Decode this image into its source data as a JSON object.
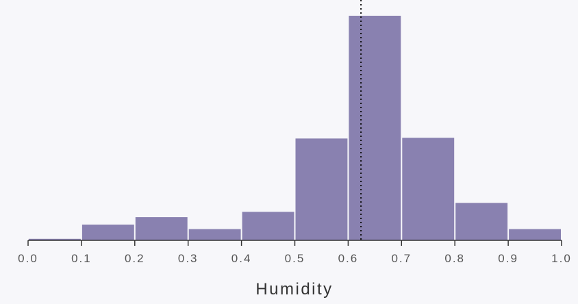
{
  "chart_data": {
    "type": "bar",
    "subtype": "histogram",
    "xlabel": "Humidity",
    "ylabel": "",
    "xlim": [
      0.0,
      1.0
    ],
    "bins": [
      {
        "x0": 0.0,
        "x1": 0.1,
        "count": 0.2
      },
      {
        "x0": 0.1,
        "x1": 0.2,
        "count": 2.1
      },
      {
        "x0": 0.2,
        "x1": 0.3,
        "count": 3.1
      },
      {
        "x0": 0.3,
        "x1": 0.4,
        "count": 1.5
      },
      {
        "x0": 0.4,
        "x1": 0.5,
        "count": 3.8
      },
      {
        "x0": 0.5,
        "x1": 0.6,
        "count": 13.6
      },
      {
        "x0": 0.6,
        "x1": 0.7,
        "count": 30.0
      },
      {
        "x0": 0.7,
        "x1": 0.8,
        "count": 13.7
      },
      {
        "x0": 0.8,
        "x1": 0.9,
        "count": 5.0
      },
      {
        "x0": 0.9,
        "x1": 1.0,
        "count": 1.5
      }
    ],
    "ylim": [
      0,
      31.5
    ],
    "ticks": [
      "0.0",
      "0.1",
      "0.2",
      "0.3",
      "0.4",
      "0.5",
      "0.6",
      "0.7",
      "0.8",
      "0.9",
      "1.0"
    ],
    "reference_line": {
      "x": 0.624,
      "style": "dotted"
    },
    "colors": {
      "bar": "#8981b0",
      "reference_line": "#111111",
      "axis": "#333333"
    },
    "grid": false,
    "legend": "none"
  }
}
